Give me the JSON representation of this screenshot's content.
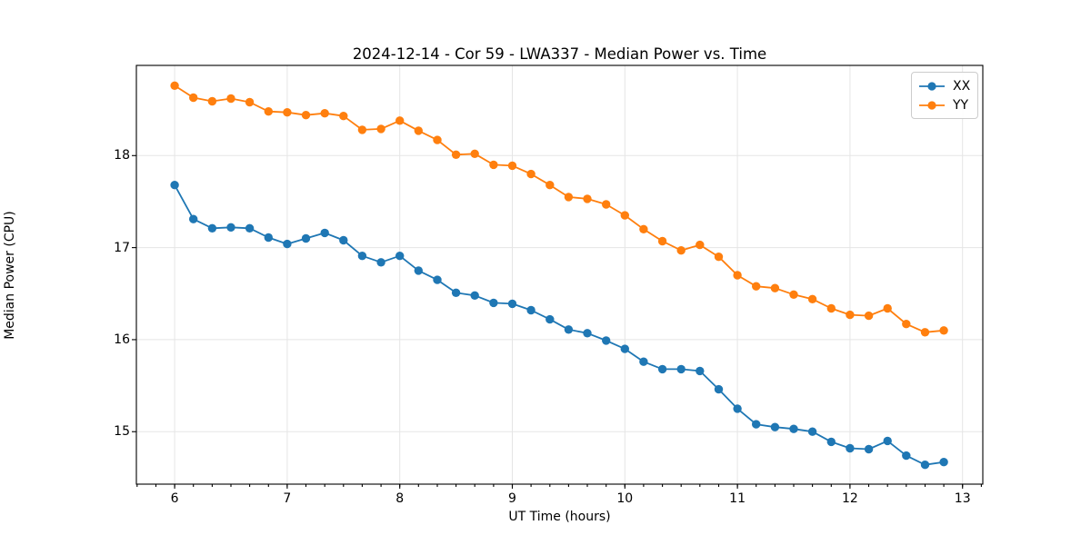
{
  "chart_data": {
    "type": "line",
    "title": "2024-12-14 - Cor 59 - LWA337 - Median Power vs. Time",
    "xlabel": "UT Time (hours)",
    "ylabel": "Median Power (CPU)",
    "xlim": [
      5.66,
      13.18
    ],
    "ylim": [
      14.43,
      18.98
    ],
    "xticks": [
      6,
      7,
      8,
      9,
      10,
      11,
      12,
      13
    ],
    "yticks": [
      15,
      16,
      17,
      18
    ],
    "x_minor_step": 0.166667,
    "grid": true,
    "legend_position": "upper right",
    "marker": "o",
    "x": [
      6.0,
      6.1667,
      6.3333,
      6.5,
      6.6667,
      6.8333,
      7.0,
      7.1667,
      7.3333,
      7.5,
      7.6667,
      7.8333,
      8.0,
      8.1667,
      8.3333,
      8.5,
      8.6667,
      8.8333,
      9.0,
      9.1667,
      9.3333,
      9.5,
      9.6667,
      9.8333,
      10.0,
      10.1667,
      10.3333,
      10.5,
      10.6667,
      10.8333,
      11.0,
      11.1667,
      11.3333,
      11.5,
      11.6667,
      11.8333,
      12.0,
      12.1667,
      12.3333,
      12.5,
      12.6667,
      12.8333
    ],
    "series": [
      {
        "name": "XX",
        "color": "#1f77b4",
        "values": [
          17.68,
          17.31,
          17.21,
          17.22,
          17.21,
          17.11,
          17.04,
          17.1,
          17.16,
          17.08,
          16.91,
          16.84,
          16.91,
          16.75,
          16.65,
          16.51,
          16.48,
          16.4,
          16.39,
          16.32,
          16.22,
          16.11,
          16.07,
          15.99,
          15.9,
          15.76,
          15.68,
          15.68,
          15.66,
          15.46,
          15.25,
          15.08,
          15.05,
          15.03,
          15.0,
          14.89,
          14.82,
          14.81,
          14.9,
          14.74,
          14.64,
          14.67
        ]
      },
      {
        "name": "YY",
        "color": "#ff7f0e",
        "values": [
          18.76,
          18.63,
          18.59,
          18.62,
          18.58,
          18.48,
          18.47,
          18.44,
          18.46,
          18.43,
          18.28,
          18.29,
          18.38,
          18.27,
          18.17,
          18.01,
          18.02,
          17.9,
          17.89,
          17.8,
          17.68,
          17.55,
          17.53,
          17.47,
          17.35,
          17.2,
          17.07,
          16.97,
          17.03,
          16.9,
          16.7,
          16.58,
          16.56,
          16.49,
          16.44,
          16.34,
          16.27,
          16.26,
          16.34,
          16.17,
          16.08,
          16.1
        ]
      }
    ]
  }
}
